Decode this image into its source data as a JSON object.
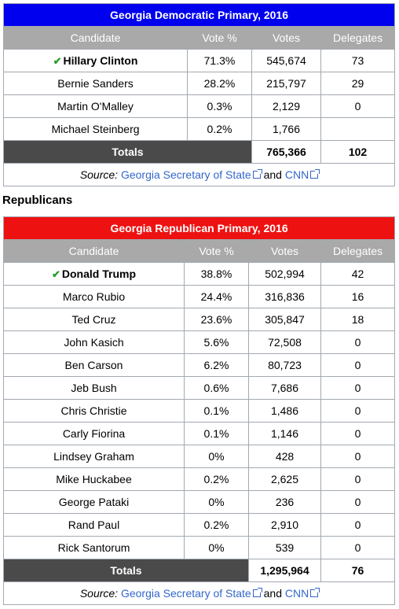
{
  "dem": {
    "title": "Georgia Democratic Primary, 2016",
    "headers": [
      "Candidate",
      "Vote %",
      "Votes",
      "Delegates"
    ],
    "rows": [
      {
        "candidate": "Hillary Clinton",
        "pct": "71.3%",
        "votes": "545,674",
        "delegates": "73",
        "winner": true
      },
      {
        "candidate": "Bernie Sanders",
        "pct": "28.2%",
        "votes": "215,797",
        "delegates": "29"
      },
      {
        "candidate": "Martin O'Malley",
        "pct": "0.3%",
        "votes": "2,129",
        "delegates": "0"
      },
      {
        "candidate": "Michael Steinberg",
        "pct": "0.2%",
        "votes": "1,766",
        "delegates": ""
      }
    ],
    "totals": {
      "label": "Totals",
      "votes": "765,366",
      "delegates": "102"
    },
    "source": {
      "prefix": "Source:",
      "link1": "Georgia Secretary of State",
      "and": "and",
      "link2": "CNN"
    }
  },
  "heading": "Republicans",
  "rep": {
    "title": "Georgia Republican Primary, 2016",
    "headers": [
      "Candidate",
      "Vote %",
      "Votes",
      "Delegates"
    ],
    "rows": [
      {
        "candidate": "Donald Trump",
        "pct": "38.8%",
        "votes": "502,994",
        "delegates": "42",
        "winner": true
      },
      {
        "candidate": "Marco Rubio",
        "pct": "24.4%",
        "votes": "316,836",
        "delegates": "16"
      },
      {
        "candidate": "Ted Cruz",
        "pct": "23.6%",
        "votes": "305,847",
        "delegates": "18"
      },
      {
        "candidate": "John Kasich",
        "pct": "5.6%",
        "votes": "72,508",
        "delegates": "0"
      },
      {
        "candidate": "Ben Carson",
        "pct": "6.2%",
        "votes": "80,723",
        "delegates": "0"
      },
      {
        "candidate": "Jeb Bush",
        "pct": "0.6%",
        "votes": "7,686",
        "delegates": "0"
      },
      {
        "candidate": "Chris Christie",
        "pct": "0.1%",
        "votes": "1,486",
        "delegates": "0"
      },
      {
        "candidate": "Carly Fiorina",
        "pct": "0.1%",
        "votes": "1,146",
        "delegates": "0"
      },
      {
        "candidate": "Lindsey Graham",
        "pct": "0%",
        "votes": "428",
        "delegates": "0"
      },
      {
        "candidate": "Mike Huckabee",
        "pct": "0.2%",
        "votes": "2,625",
        "delegates": "0"
      },
      {
        "candidate": "George Pataki",
        "pct": "0%",
        "votes": "236",
        "delegates": "0"
      },
      {
        "candidate": "Rand Paul",
        "pct": "0.2%",
        "votes": "2,910",
        "delegates": "0"
      },
      {
        "candidate": "Rick Santorum",
        "pct": "0%",
        "votes": "539",
        "delegates": "0"
      }
    ],
    "totals": {
      "label": "Totals",
      "votes": "1,295,964",
      "delegates": "76"
    },
    "source": {
      "prefix": "Source:",
      "link1": "Georgia Secretary of State",
      "and": "and",
      "link2": "CNN"
    }
  },
  "colors": {
    "dem_title": "#0000ee",
    "rep_title": "#ee1111",
    "header": "#a9a9a9",
    "totals": "#4a4a4a",
    "link": "#3366cc",
    "check": "#2a9d2a"
  },
  "icons": {
    "winner": "check-icon",
    "external": "external-link-icon"
  }
}
